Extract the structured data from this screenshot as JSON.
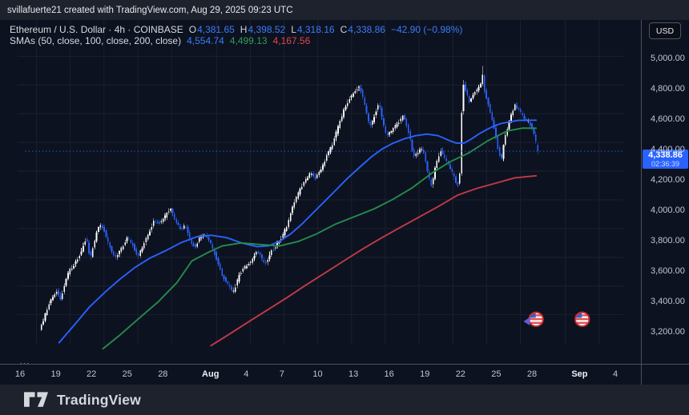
{
  "attribution_bar": {
    "text": "svillafuerte21 created with TradingView.com, Aug 29, 2025 09:23 UTC"
  },
  "header": {
    "symbol_descriptor": "Ethereum / U.S. Dollar · 4h · COINBASE",
    "ohlc": [
      {
        "label": "O",
        "value": "4,381.65"
      },
      {
        "label": "H",
        "value": "4,398.52"
      },
      {
        "label": "L",
        "value": "4,318.16"
      },
      {
        "label": "C",
        "value": "4,338.86"
      }
    ],
    "change": "−42.90 (−0.98%)",
    "sma": {
      "label": "SMAs (50, close, 100, close, 200, close)",
      "values": [
        "4,554.74",
        "4,499.13",
        "4,167.56"
      ]
    },
    "more": "⋯"
  },
  "price_scale": {
    "unit_button": "USD",
    "labels": [
      "5,000.00",
      "4,800.00",
      "4,600.00",
      "4,400.00",
      "4,200.00",
      "4,000.00",
      "3,800.00",
      "3,600.00",
      "3,400.00",
      "3,200.00"
    ],
    "last_price_badge": {
      "price": "4,338.86",
      "countdown": "02:36:39"
    }
  },
  "footer": {
    "brand": "TradingView"
  },
  "chart_data": {
    "type": "candlestick",
    "title": "Ethereum / U.S. Dollar",
    "interval": "4h",
    "exchange": "COINBASE",
    "last_candle": {
      "open": 4381.65,
      "high": 4398.52,
      "low": 4318.16,
      "close": 4338.86
    },
    "change": -42.9,
    "change_pct": -0.98,
    "last_price": 4338.86,
    "sma_values": {
      "sma50": 4554.74,
      "sma100": 4499.13,
      "sma200": 4167.56
    },
    "y_axis": {
      "ticks": [
        5000,
        4800,
        4600,
        4400,
        4200,
        4000,
        3800,
        3600,
        3400,
        3200
      ],
      "visible_min": 3040,
      "visible_max": 5120,
      "grid": true
    },
    "x_axis": {
      "start_date": "Jul 16",
      "end_date": "Sep 4",
      "grid": true,
      "ticks": [
        {
          "label": "16",
          "day": 0
        },
        {
          "label": "19",
          "day": 3
        },
        {
          "label": "22",
          "day": 6
        },
        {
          "label": "25",
          "day": 9
        },
        {
          "label": "28",
          "day": 12
        },
        {
          "label": "Aug",
          "day": 16,
          "major": true
        },
        {
          "label": "4",
          "day": 19
        },
        {
          "label": "7",
          "day": 22
        },
        {
          "label": "10",
          "day": 25
        },
        {
          "label": "13",
          "day": 28
        },
        {
          "label": "16",
          "day": 31
        },
        {
          "label": "19",
          "day": 34
        },
        {
          "label": "22",
          "day": 37
        },
        {
          "label": "25",
          "day": 40
        },
        {
          "label": "28",
          "day": 43
        },
        {
          "label": "Sep",
          "day": 47,
          "major": true
        },
        {
          "label": "4",
          "day": 50
        }
      ]
    },
    "colors": {
      "up": "#ffffff",
      "down": "#2962ff",
      "sma50": "#2962ff",
      "sma100": "#258c4b",
      "sma200": "#c23a47",
      "last_price_line": "#2962ff",
      "background": "#0d1220"
    },
    "price_path": [
      [
        0.35,
        3100
      ],
      [
        0.7,
        3160
      ],
      [
        1.1,
        3260
      ],
      [
        1.5,
        3320
      ],
      [
        1.9,
        3370
      ],
      [
        2.2,
        3305
      ],
      [
        2.6,
        3420
      ],
      [
        3.0,
        3510
      ],
      [
        3.4,
        3545
      ],
      [
        3.8,
        3595
      ],
      [
        4.1,
        3655
      ],
      [
        4.5,
        3740
      ],
      [
        4.85,
        3590
      ],
      [
        5.1,
        3665
      ],
      [
        5.45,
        3790
      ],
      [
        5.8,
        3830
      ],
      [
        6.1,
        3785
      ],
      [
        6.5,
        3685
      ],
      [
        7.1,
        3595
      ],
      [
        7.5,
        3645
      ],
      [
        8.2,
        3740
      ],
      [
        8.6,
        3685
      ],
      [
        9.1,
        3605
      ],
      [
        9.6,
        3690
      ],
      [
        10.5,
        3850
      ],
      [
        11.0,
        3835
      ],
      [
        11.5,
        3885
      ],
      [
        12.0,
        3940
      ],
      [
        12.4,
        3855
      ],
      [
        12.9,
        3795
      ],
      [
        13.3,
        3820
      ],
      [
        13.8,
        3705
      ],
      [
        14.2,
        3675
      ],
      [
        14.6,
        3740
      ],
      [
        15.1,
        3755
      ],
      [
        15.6,
        3690
      ],
      [
        16.1,
        3585
      ],
      [
        16.6,
        3470
      ],
      [
        17.2,
        3395
      ],
      [
        17.6,
        3360
      ],
      [
        18.1,
        3480
      ],
      [
        18.6,
        3535
      ],
      [
        19.1,
        3560
      ],
      [
        19.6,
        3640
      ],
      [
        20.0,
        3608
      ],
      [
        20.4,
        3550
      ],
      [
        20.9,
        3640
      ],
      [
        21.4,
        3685
      ],
      [
        21.9,
        3745
      ],
      [
        22.4,
        3830
      ],
      [
        22.9,
        3970
      ],
      [
        23.4,
        4060
      ],
      [
        23.9,
        4130
      ],
      [
        24.4,
        4185
      ],
      [
        24.9,
        4155
      ],
      [
        25.4,
        4220
      ],
      [
        25.9,
        4310
      ],
      [
        26.4,
        4390
      ],
      [
        26.9,
        4510
      ],
      [
        27.4,
        4630
      ],
      [
        27.9,
        4710
      ],
      [
        28.4,
        4760
      ],
      [
        28.8,
        4790
      ],
      [
        29.3,
        4645
      ],
      [
        29.7,
        4505
      ],
      [
        30.2,
        4605
      ],
      [
        30.5,
        4680
      ],
      [
        30.9,
        4525
      ],
      [
        31.2,
        4445
      ],
      [
        31.7,
        4485
      ],
      [
        32.3,
        4545
      ],
      [
        32.7,
        4590
      ],
      [
        33.2,
        4455
      ],
      [
        33.6,
        4295
      ],
      [
        34.0,
        4335
      ],
      [
        34.4,
        4355
      ],
      [
        34.9,
        4175
      ],
      [
        35.2,
        4090
      ],
      [
        35.6,
        4255
      ],
      [
        36.0,
        4350
      ],
      [
        36.4,
        4285
      ],
      [
        36.8,
        4225
      ],
      [
        37.2,
        4155
      ],
      [
        37.5,
        4095
      ],
      [
        37.7,
        4180
      ],
      [
        37.95,
        4820
      ],
      [
        38.25,
        4750
      ],
      [
        38.55,
        4685
      ],
      [
        38.9,
        4735
      ],
      [
        39.3,
        4775
      ],
      [
        39.55,
        4800
      ],
      [
        39.67,
        4940
      ],
      [
        39.8,
        4780
      ],
      [
        40.1,
        4700
      ],
      [
        40.45,
        4600
      ],
      [
        40.8,
        4480
      ],
      [
        41.15,
        4330
      ],
      [
        41.4,
        4285
      ],
      [
        41.7,
        4430
      ],
      [
        42.0,
        4520
      ],
      [
        42.3,
        4605
      ],
      [
        42.6,
        4660
      ],
      [
        43.0,
        4625
      ],
      [
        43.4,
        4565
      ],
      [
        43.8,
        4545
      ],
      [
        44.2,
        4485
      ],
      [
        44.55,
        4390
      ],
      [
        44.72,
        4339
      ]
    ],
    "smas": [
      {
        "period": 50,
        "value": 4554.74,
        "color_key": "sma50",
        "path": [
          [
            2.0,
            3005
          ],
          [
            3.4,
            3132
          ],
          [
            4.7,
            3253
          ],
          [
            6.1,
            3358
          ],
          [
            7.4,
            3447
          ],
          [
            8.8,
            3532
          ],
          [
            10.1,
            3595
          ],
          [
            11.5,
            3647
          ],
          [
            12.8,
            3700
          ],
          [
            14.2,
            3742
          ],
          [
            15.5,
            3753
          ],
          [
            16.9,
            3737
          ],
          [
            18.2,
            3700
          ],
          [
            19.6,
            3674
          ],
          [
            20.6,
            3679
          ],
          [
            21.6,
            3711
          ],
          [
            22.6,
            3763
          ],
          [
            23.6,
            3832
          ],
          [
            24.6,
            3911
          ],
          [
            25.6,
            3989
          ],
          [
            26.6,
            4068
          ],
          [
            27.6,
            4147
          ],
          [
            28.7,
            4226
          ],
          [
            29.7,
            4295
          ],
          [
            30.7,
            4353
          ],
          [
            31.7,
            4395
          ],
          [
            32.7,
            4426
          ],
          [
            33.7,
            4447
          ],
          [
            34.7,
            4458
          ],
          [
            35.7,
            4447
          ],
          [
            36.6,
            4416
          ],
          [
            37.3,
            4395
          ],
          [
            38.0,
            4395
          ],
          [
            38.6,
            4421
          ],
          [
            39.3,
            4458
          ],
          [
            40.0,
            4489
          ],
          [
            40.7,
            4516
          ],
          [
            41.3,
            4532
          ],
          [
            42.0,
            4542
          ],
          [
            42.8,
            4553
          ],
          [
            44.4,
            4554.7
          ]
        ]
      },
      {
        "period": 100,
        "value": 4499.13,
        "color_key": "sma100",
        "path": [
          [
            5.9,
            2963
          ],
          [
            7.4,
            3058
          ],
          [
            9.1,
            3174
          ],
          [
            10.8,
            3289
          ],
          [
            12.5,
            3426
          ],
          [
            13.8,
            3574
          ],
          [
            15.2,
            3632
          ],
          [
            16.5,
            3679
          ],
          [
            18.2,
            3700
          ],
          [
            19.9,
            3689
          ],
          [
            21.6,
            3679
          ],
          [
            23.3,
            3711
          ],
          [
            24.9,
            3763
          ],
          [
            26.6,
            3832
          ],
          [
            28.3,
            3884
          ],
          [
            30.0,
            3937
          ],
          [
            31.7,
            4005
          ],
          [
            33.4,
            4084
          ],
          [
            35.1,
            4184
          ],
          [
            36.7,
            4263
          ],
          [
            38.4,
            4326
          ],
          [
            40.1,
            4411
          ],
          [
            41.8,
            4479
          ],
          [
            43.2,
            4500
          ],
          [
            44.4,
            4499.1
          ]
        ]
      },
      {
        "period": 200,
        "value": 4167.56,
        "color_key": "sma200",
        "path": [
          [
            15.5,
            2984
          ],
          [
            17.2,
            3068
          ],
          [
            18.9,
            3153
          ],
          [
            20.6,
            3237
          ],
          [
            22.3,
            3321
          ],
          [
            23.9,
            3405
          ],
          [
            25.6,
            3489
          ],
          [
            27.3,
            3574
          ],
          [
            29.0,
            3658
          ],
          [
            30.7,
            3737
          ],
          [
            32.4,
            3811
          ],
          [
            34.1,
            3884
          ],
          [
            35.7,
            3953
          ],
          [
            37.4,
            4032
          ],
          [
            39.1,
            4079
          ],
          [
            40.8,
            4116
          ],
          [
            42.5,
            4153
          ],
          [
            44.4,
            4167.6
          ]
        ]
      }
    ],
    "event_markers": [
      {
        "name": "us-economic-event",
        "day": 44.4,
        "price": 3168
      },
      {
        "name": "us-economic-event",
        "day": 48.5,
        "price": 3168
      }
    ],
    "pointer_cursor": {
      "day": 43.55,
      "price": 3158
    }
  }
}
